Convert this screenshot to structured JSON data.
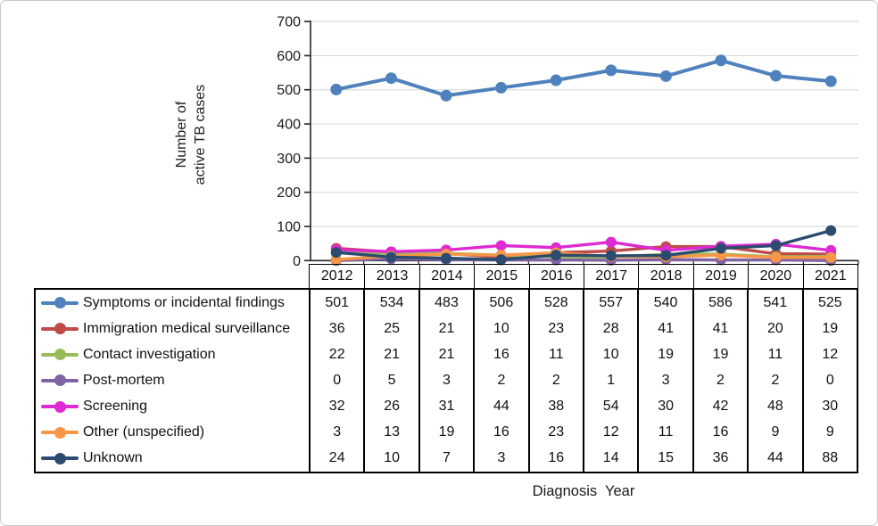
{
  "figure": {
    "y_axis_label_line1": "Number of",
    "y_axis_label_line2": "active TB cases",
    "x_axis_label": "Diagnosis  Year"
  },
  "chart_data": {
    "type": "line",
    "title": "",
    "xlabel": "Diagnosis Year",
    "ylabel": "Number of active TB cases",
    "categories": [
      "2012",
      "2013",
      "2014",
      "2015",
      "2016",
      "2017",
      "2018",
      "2019",
      "2020",
      "2021"
    ],
    "ylim": [
      0,
      700
    ],
    "yticks": [
      0,
      100,
      200,
      300,
      400,
      500,
      600,
      700
    ],
    "grid": true,
    "legend_position": "table-left",
    "series": [
      {
        "name": "Symptoms or incidental findings",
        "color": "#4F81BD",
        "values": [
          501,
          534,
          483,
          506,
          528,
          557,
          540,
          586,
          541,
          525
        ]
      },
      {
        "name": "Immigration medical surveillance",
        "color": "#BE4B48",
        "values": [
          36,
          25,
          21,
          10,
          23,
          28,
          41,
          41,
          20,
          19
        ]
      },
      {
        "name": "Contact investigation",
        "color": "#9BBB59",
        "values": [
          22,
          21,
          21,
          16,
          11,
          10,
          19,
          19,
          11,
          12
        ]
      },
      {
        "name": "Post-mortem",
        "color": "#8064A2",
        "values": [
          0,
          5,
          3,
          2,
          2,
          1,
          3,
          2,
          2,
          0
        ]
      },
      {
        "name": "Screening",
        "color": "#DD2AD2",
        "values": [
          32,
          26,
          31,
          44,
          38,
          54,
          30,
          42,
          48,
          30
        ]
      },
      {
        "name": "Other (unspecified)",
        "color": "#F79646",
        "values": [
          3,
          13,
          19,
          16,
          23,
          12,
          11,
          16,
          9,
          9
        ]
      },
      {
        "name": "Unknown",
        "color": "#2B4C6F",
        "values": [
          24,
          10,
          7,
          3,
          16,
          14,
          15,
          36,
          44,
          88
        ]
      }
    ]
  },
  "colors": {
    "axis": "#262626",
    "gridline": "#D9D9D9",
    "tick_label": "#1a1a1a",
    "table_border": "#000000"
  }
}
